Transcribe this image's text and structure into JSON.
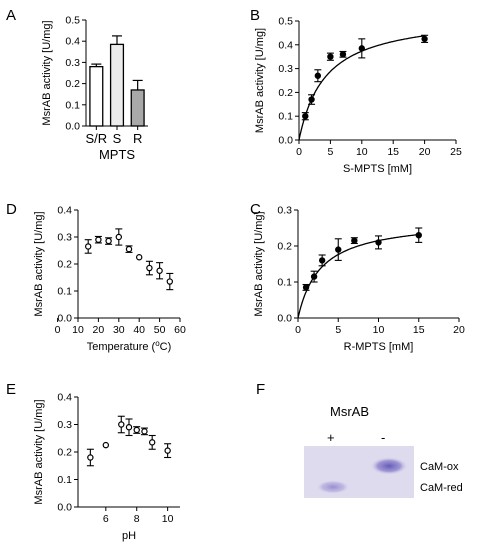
{
  "chart_data": [
    {
      "panel": "A",
      "type": "bar",
      "categories": [
        "S/R",
        "S",
        "R"
      ],
      "values": [
        0.28,
        0.385,
        0.17
      ],
      "errors": [
        0.012,
        0.04,
        0.045
      ],
      "bar_colors": [
        "#ffffff",
        "#ececec",
        "#a8a8a8"
      ],
      "xlabel": "MPTS",
      "ylabel": "MsrAB activity [U/mg]",
      "ylim": [
        0,
        0.5
      ],
      "yticks": [
        "0.0",
        "0.1",
        "0.2",
        "0.3",
        "0.4",
        "0.5"
      ],
      "grid": false
    },
    {
      "panel": "B",
      "type": "scatter",
      "x": [
        1,
        2,
        3,
        5,
        7,
        10,
        20
      ],
      "y": [
        0.1,
        0.17,
        0.27,
        0.35,
        0.36,
        0.385,
        0.425
      ],
      "errors": [
        0.015,
        0.02,
        0.025,
        0.015,
        0.012,
        0.04,
        0.015
      ],
      "fit": {
        "kind": "michaelis-menten",
        "vmax": 0.53,
        "km": 4.2
      },
      "xlabel": "S-MPTS [mM]",
      "ylabel": "MsrAB activity [U/mg]",
      "xlim": [
        0,
        25
      ],
      "ylim": [
        0,
        0.5
      ],
      "xticks": [
        "0",
        "5",
        "10",
        "15",
        "20",
        "25"
      ],
      "yticks": [
        "0.0",
        "0.1",
        "0.2",
        "0.3",
        "0.4",
        "0.5"
      ],
      "grid": false
    },
    {
      "panel": "C",
      "type": "scatter",
      "x": [
        1,
        2,
        3,
        5,
        7,
        10,
        15
      ],
      "y": [
        0.085,
        0.115,
        0.16,
        0.19,
        0.215,
        0.21,
        0.23
      ],
      "errors": [
        0.008,
        0.015,
        0.015,
        0.03,
        0.008,
        0.018,
        0.02
      ],
      "fit": {
        "kind": "michaelis-menten",
        "vmax": 0.275,
        "km": 2.8
      },
      "xlabel": "R-MPTS [mM]",
      "ylabel": "MsrAB activity [U/mg]",
      "xlim": [
        0,
        20
      ],
      "ylim": [
        0,
        0.3
      ],
      "xticks": [
        "0",
        "5",
        "10",
        "15",
        "20"
      ],
      "yticks": [
        "0.0",
        "0.1",
        "0.2",
        "0.3"
      ],
      "grid": false
    },
    {
      "panel": "D",
      "type": "scatter",
      "x": [
        15,
        20,
        25,
        30,
        35,
        40,
        45,
        50,
        55
      ],
      "y": [
        0.265,
        0.29,
        0.285,
        0.3,
        0.255,
        0.225,
        0.185,
        0.175,
        0.135
      ],
      "errors": [
        0.025,
        0.012,
        0.012,
        0.03,
        0.012,
        0,
        0.025,
        0.03,
        0.03
      ],
      "xlabel": "Temperature (",
      "xlabel_sup": "o",
      "xlabel_tail": "C)",
      "ylabel": "MsrAB activity [U/mg]",
      "xlim": [
        10,
        60
      ],
      "ylim": [
        0,
        0.4
      ],
      "xticks": [
        "0",
        "10",
        "20",
        "30",
        "40",
        "50",
        "60"
      ],
      "yticks": [
        "0.0",
        "0.1",
        "0.2",
        "0.3",
        "0.4"
      ],
      "grid": false
    },
    {
      "panel": "E",
      "type": "scatter",
      "x": [
        5,
        6,
        7,
        7.5,
        8,
        8.5,
        9,
        10
      ],
      "y": [
        0.18,
        0.225,
        0.3,
        0.29,
        0.28,
        0.275,
        0.235,
        0.205
      ],
      "errors": [
        0.03,
        0,
        0.03,
        0.03,
        0.012,
        0.012,
        0.025,
        0.025
      ],
      "xlabel": "pH",
      "ylabel": "MsrAB activity [U/mg]",
      "xlim": [
        4.2,
        10.8
      ],
      "ylim": [
        0,
        0.4
      ],
      "xticks": [
        "6",
        "8",
        "10"
      ],
      "yticks": [
        "0.0",
        "0.1",
        "0.2",
        "0.3",
        "0.4"
      ],
      "grid": false
    }
  ],
  "blot": {
    "panel": "F",
    "title": "MsrAB",
    "lane_plus": "+",
    "lane_minus": "-",
    "band_ox": "CaM-ox",
    "band_red": "CaM-red",
    "background": "#dedbef",
    "band_color": "#7a6fc2"
  }
}
